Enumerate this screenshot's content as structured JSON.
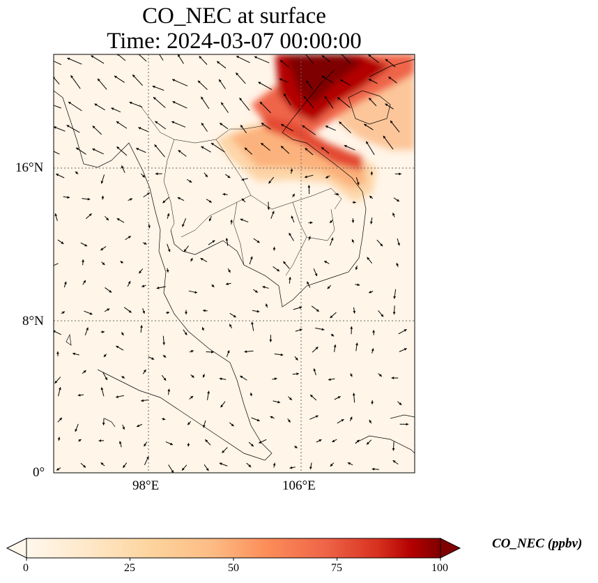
{
  "title": {
    "line1": "CO_NEC at surface",
    "line2": "Time: 2024-03-07 00:00:00"
  },
  "map": {
    "lat_labels": [
      "16°N",
      "8°N",
      "0°"
    ],
    "lon_labels": [
      "98°E",
      "106°E"
    ],
    "lon_range": [
      93,
      112
    ],
    "lat_range": [
      0,
      22
    ],
    "gridlines": "dotted",
    "wind_vectors": true
  },
  "colorbar": {
    "label": "CO_NEC (ppbv)",
    "ticks": [
      "0",
      "25",
      "50",
      "75",
      "100"
    ],
    "range": [
      0,
      100
    ],
    "colormap": "OrRd",
    "extend": "both"
  },
  "colors": {
    "low": "#fff7ec",
    "mid": "#fc8d59",
    "high": "#7f0000"
  }
}
